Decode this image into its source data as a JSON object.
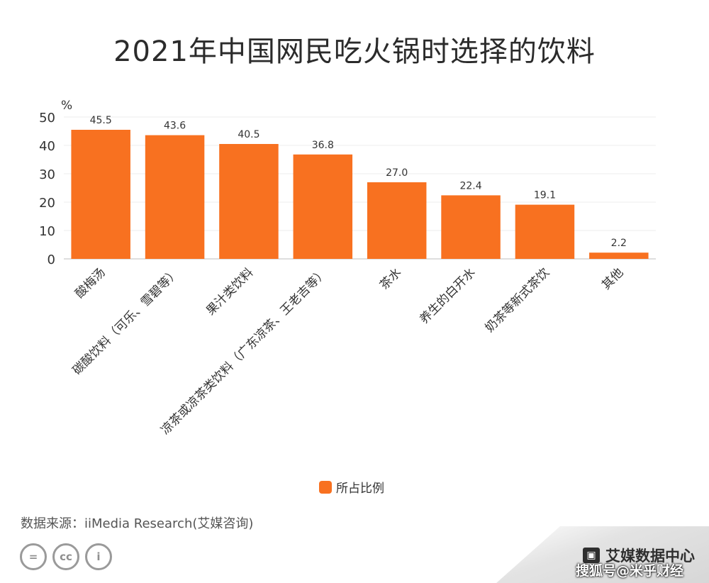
{
  "title": "2021年中国网民吃火锅时选择的饮料",
  "chart_data": {
    "type": "bar",
    "categories": [
      "酸梅汤",
      "碳酸饮料（可乐、雪碧等）",
      "果汁类饮料",
      "凉茶或凉茶类饮料（广东凉茶、王老吉等）",
      "茶水",
      "养生的白开水",
      "奶茶等新式茶饮",
      "其他"
    ],
    "values": [
      45.5,
      43.6,
      40.5,
      36.8,
      27.0,
      22.4,
      19.1,
      2.2
    ],
    "value_labels": [
      "45.5",
      "43.6",
      "40.5",
      "36.8",
      "27.0",
      "22.4",
      "19.1",
      "2.2"
    ],
    "series_name": "所占比例",
    "ylabel": "%",
    "ylim": [
      0,
      50
    ],
    "yticks": [
      "0",
      "10",
      "20",
      "30",
      "40",
      "50"
    ],
    "grid": true,
    "legend_position": "bottom",
    "bar_color": "#f87120"
  },
  "source": "数据来源：iiMedia Research(艾媒咨询)",
  "license_icons": [
    "=",
    "cc",
    "i"
  ],
  "brand": "艾媒数据中心",
  "watermark": "搜狐号@米乎财经"
}
